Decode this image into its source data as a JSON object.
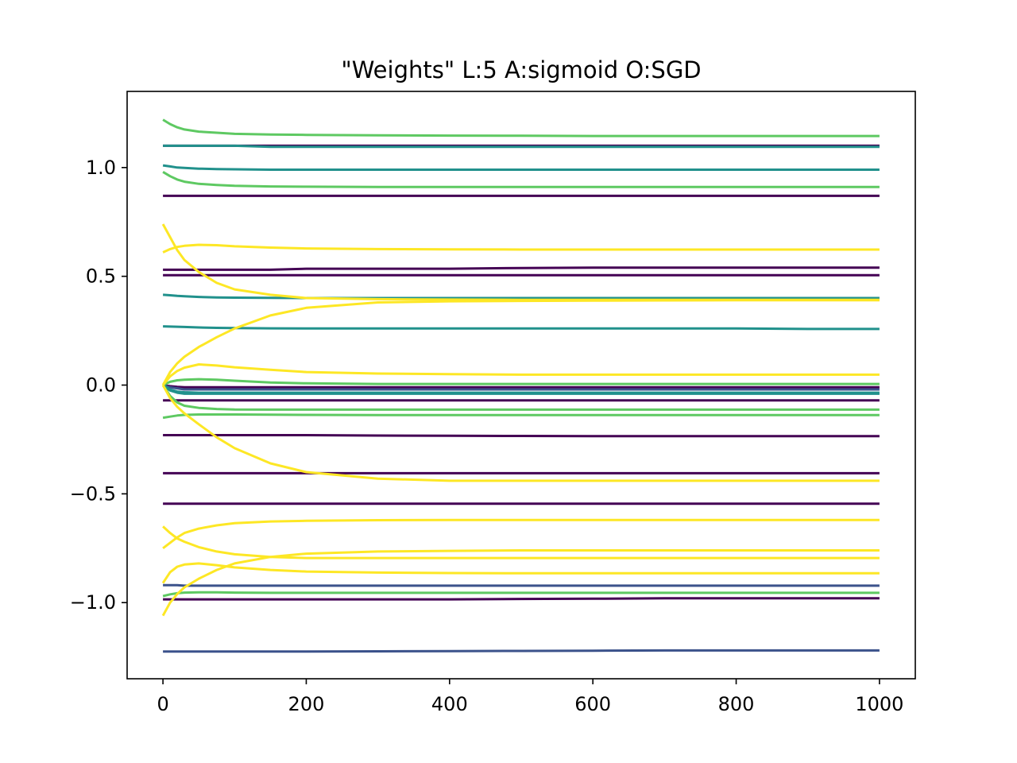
{
  "chart_data": {
    "type": "line",
    "title": "\"Weights\" L:5 A:sigmoid O:SGD",
    "xlabel": "",
    "ylabel": "",
    "xlim": [
      -50,
      1050
    ],
    "ylim": [
      -1.35,
      1.35
    ],
    "grid": false,
    "legend": "none",
    "xticks": [
      {
        "value": 0,
        "label": "0"
      },
      {
        "value": 200,
        "label": "200"
      },
      {
        "value": 400,
        "label": "400"
      },
      {
        "value": 600,
        "label": "600"
      },
      {
        "value": 800,
        "label": "800"
      },
      {
        "value": 1000,
        "label": "1000"
      }
    ],
    "yticks": [
      {
        "value": 1.0,
        "label": "1.0"
      },
      {
        "value": 0.5,
        "label": "0.5"
      },
      {
        "value": 0.0,
        "label": "0.0"
      },
      {
        "value": -0.5,
        "label": "−0.5"
      },
      {
        "value": -1.0,
        "label": "−1.0"
      }
    ],
    "x": [
      0,
      10,
      20,
      30,
      50,
      75,
      100,
      150,
      200,
      300,
      400,
      500,
      600,
      700,
      800,
      900,
      1000
    ],
    "series": [
      {
        "color": "#440154",
        "values": [
          1.1,
          1.1,
          1.1,
          1.1,
          1.1,
          1.1,
          1.1,
          1.1,
          1.1,
          1.1,
          1.1,
          1.1,
          1.1,
          1.1,
          1.1,
          1.1,
          1.1
        ]
      },
      {
        "color": "#440154",
        "values": [
          0.87,
          0.87,
          0.87,
          0.87,
          0.87,
          0.87,
          0.87,
          0.87,
          0.87,
          0.87,
          0.87,
          0.87,
          0.87,
          0.87,
          0.87,
          0.87,
          0.87
        ]
      },
      {
        "color": "#440154",
        "values": [
          0.53,
          0.53,
          0.53,
          0.53,
          0.53,
          0.53,
          0.53,
          0.53,
          0.535,
          0.535,
          0.535,
          0.538,
          0.54,
          0.54,
          0.54,
          0.54,
          0.54
        ]
      },
      {
        "color": "#440154",
        "values": [
          0.505,
          0.505,
          0.505,
          0.505,
          0.505,
          0.505,
          0.505,
          0.505,
          0.505,
          0.505,
          0.505,
          0.505,
          0.505,
          0.505,
          0.505,
          0.505,
          0.505
        ]
      },
      {
        "color": "#440154",
        "values": [
          0.0,
          -0.005,
          -0.008,
          -0.01,
          -0.01,
          -0.01,
          -0.01,
          -0.01,
          -0.01,
          -0.01,
          -0.01,
          -0.01,
          -0.01,
          -0.01,
          -0.01,
          -0.01,
          -0.01
        ]
      },
      {
        "color": "#440154",
        "values": [
          -0.07,
          -0.07,
          -0.07,
          -0.07,
          -0.07,
          -0.07,
          -0.07,
          -0.07,
          -0.07,
          -0.07,
          -0.07,
          -0.07,
          -0.07,
          -0.07,
          -0.07,
          -0.07,
          -0.07
        ]
      },
      {
        "color": "#440154",
        "values": [
          -0.23,
          -0.23,
          -0.23,
          -0.23,
          -0.23,
          -0.23,
          -0.23,
          -0.23,
          -0.23,
          -0.232,
          -0.233,
          -0.234,
          -0.235,
          -0.235,
          -0.235,
          -0.235,
          -0.235
        ]
      },
      {
        "color": "#440154",
        "values": [
          -0.405,
          -0.405,
          -0.405,
          -0.405,
          -0.405,
          -0.405,
          -0.405,
          -0.405,
          -0.405,
          -0.405,
          -0.405,
          -0.405,
          -0.405,
          -0.405,
          -0.405,
          -0.405,
          -0.405
        ]
      },
      {
        "color": "#440154",
        "values": [
          -0.545,
          -0.545,
          -0.545,
          -0.545,
          -0.545,
          -0.545,
          -0.545,
          -0.545,
          -0.545,
          -0.545,
          -0.545,
          -0.545,
          -0.545,
          -0.545,
          -0.545,
          -0.545,
          -0.545
        ]
      },
      {
        "color": "#440154",
        "values": [
          -0.985,
          -0.985,
          -0.985,
          -0.985,
          -0.985,
          -0.985,
          -0.985,
          -0.985,
          -0.985,
          -0.985,
          -0.985,
          -0.983,
          -0.982,
          -0.98,
          -0.98,
          -0.98,
          -0.98
        ]
      },
      {
        "color": "#3b528b",
        "values": [
          -0.92,
          -0.92,
          -0.92,
          -0.922,
          -0.922,
          -0.922,
          -0.922,
          -0.922,
          -0.922,
          -0.922,
          -0.922,
          -0.922,
          -0.922,
          -0.922,
          -0.922,
          -0.922,
          -0.922
        ]
      },
      {
        "color": "#3b528b",
        "values": [
          -1.225,
          -1.225,
          -1.225,
          -1.225,
          -1.225,
          -1.225,
          -1.225,
          -1.225,
          -1.225,
          -1.224,
          -1.223,
          -1.222,
          -1.221,
          -1.22,
          -1.22,
          -1.22,
          -1.22
        ]
      },
      {
        "color": "#3b528b",
        "values": [
          0.0,
          -0.01,
          -0.015,
          -0.02,
          -0.02,
          -0.02,
          -0.02,
          -0.02,
          -0.02,
          -0.02,
          -0.02,
          -0.02,
          -0.02,
          -0.02,
          -0.02,
          -0.02,
          -0.02
        ]
      },
      {
        "color": "#21918c",
        "values": [
          1.1,
          1.1,
          1.1,
          1.1,
          1.1,
          1.1,
          1.1,
          1.095,
          1.095,
          1.095,
          1.095,
          1.095,
          1.095,
          1.095,
          1.095,
          1.095,
          1.095
        ]
      },
      {
        "color": "#21918c",
        "values": [
          1.01,
          1.005,
          1.0,
          0.998,
          0.995,
          0.993,
          0.992,
          0.99,
          0.99,
          0.99,
          0.99,
          0.99,
          0.99,
          0.99,
          0.99,
          0.99,
          0.99
        ]
      },
      {
        "color": "#21918c",
        "values": [
          0.415,
          0.413,
          0.41,
          0.408,
          0.405,
          0.403,
          0.402,
          0.401,
          0.4,
          0.4,
          0.4,
          0.4,
          0.4,
          0.4,
          0.4,
          0.4,
          0.4
        ]
      },
      {
        "color": "#21918c",
        "values": [
          0.27,
          0.269,
          0.268,
          0.267,
          0.265,
          0.263,
          0.262,
          0.261,
          0.26,
          0.26,
          0.26,
          0.26,
          0.26,
          0.26,
          0.26,
          0.258,
          0.258
        ]
      },
      {
        "color": "#21918c",
        "values": [
          0.0,
          -0.02,
          -0.03,
          -0.033,
          -0.035,
          -0.035,
          -0.035,
          -0.035,
          -0.035,
          -0.035,
          -0.035,
          -0.035,
          -0.035,
          -0.035,
          -0.035,
          -0.035,
          -0.035
        ]
      },
      {
        "color": "#21918c",
        "values": [
          0.0,
          -0.025,
          -0.035,
          -0.04,
          -0.04,
          -0.04,
          -0.04,
          -0.04,
          -0.04,
          -0.04,
          -0.04,
          -0.04,
          -0.04,
          -0.04,
          -0.04,
          -0.04,
          -0.04
        ]
      },
      {
        "color": "#5ec962",
        "values": [
          1.22,
          1.2,
          1.185,
          1.175,
          1.165,
          1.16,
          1.155,
          1.152,
          1.15,
          1.148,
          1.147,
          1.146,
          1.145,
          1.145,
          1.145,
          1.145,
          1.145
        ]
      },
      {
        "color": "#5ec962",
        "values": [
          0.98,
          0.96,
          0.945,
          0.935,
          0.925,
          0.92,
          0.916,
          0.913,
          0.912,
          0.911,
          0.911,
          0.911,
          0.911,
          0.911,
          0.911,
          0.911,
          0.911
        ]
      },
      {
        "color": "#5ec962",
        "values": [
          0.0,
          0.015,
          0.022,
          0.025,
          0.027,
          0.025,
          0.02,
          0.012,
          0.008,
          0.005,
          0.005,
          0.005,
          0.005,
          0.005,
          0.005,
          0.005,
          0.005
        ]
      },
      {
        "color": "#5ec962",
        "values": [
          0.0,
          -0.05,
          -0.08,
          -0.095,
          -0.105,
          -0.11,
          -0.112,
          -0.113,
          -0.113,
          -0.113,
          -0.113,
          -0.113,
          -0.113,
          -0.113,
          -0.113,
          -0.113,
          -0.113
        ]
      },
      {
        "color": "#5ec962",
        "values": [
          -0.15,
          -0.145,
          -0.14,
          -0.137,
          -0.135,
          -0.135,
          -0.135,
          -0.136,
          -0.137,
          -0.138,
          -0.138,
          -0.138,
          -0.138,
          -0.138,
          -0.138,
          -0.138,
          -0.138
        ]
      },
      {
        "color": "#5ec962",
        "values": [
          -0.97,
          -0.962,
          -0.957,
          -0.954,
          -0.953,
          -0.953,
          -0.954,
          -0.955,
          -0.955,
          -0.955,
          -0.955,
          -0.955,
          -0.955,
          -0.955,
          -0.955,
          -0.955,
          -0.955
        ]
      },
      {
        "color": "#fde725",
        "values": [
          0.61,
          0.625,
          0.635,
          0.64,
          0.645,
          0.643,
          0.638,
          0.632,
          0.628,
          0.625,
          0.624,
          0.623,
          0.623,
          0.623,
          0.623,
          0.623,
          0.623
        ]
      },
      {
        "color": "#fde725",
        "values": [
          0.74,
          0.68,
          0.62,
          0.575,
          0.52,
          0.47,
          0.44,
          0.415,
          0.4,
          0.395,
          0.393,
          0.392,
          0.392,
          0.392,
          0.392,
          0.392,
          0.392
        ]
      },
      {
        "color": "#fde725",
        "values": [
          0.0,
          0.06,
          0.1,
          0.13,
          0.175,
          0.22,
          0.26,
          0.32,
          0.355,
          0.38,
          0.385,
          0.387,
          0.388,
          0.389,
          0.39,
          0.39,
          0.39
        ]
      },
      {
        "color": "#fde725",
        "values": [
          0.0,
          0.04,
          0.065,
          0.08,
          0.095,
          0.09,
          0.082,
          0.07,
          0.06,
          0.053,
          0.05,
          0.048,
          0.048,
          0.048,
          0.048,
          0.048,
          0.048
        ]
      },
      {
        "color": "#fde725",
        "values": [
          0.0,
          -0.06,
          -0.1,
          -0.13,
          -0.18,
          -0.24,
          -0.29,
          -0.36,
          -0.4,
          -0.43,
          -0.44,
          -0.44,
          -0.44,
          -0.44,
          -0.44,
          -0.44,
          -0.44
        ]
      },
      {
        "color": "#fde725",
        "values": [
          -0.65,
          -0.68,
          -0.705,
          -0.72,
          -0.745,
          -0.765,
          -0.778,
          -0.79,
          -0.795,
          -0.795,
          -0.795,
          -0.795,
          -0.795,
          -0.795,
          -0.795,
          -0.795,
          -0.795
        ]
      },
      {
        "color": "#fde725",
        "values": [
          -0.75,
          -0.725,
          -0.7,
          -0.68,
          -0.66,
          -0.645,
          -0.635,
          -0.627,
          -0.624,
          -0.621,
          -0.62,
          -0.62,
          -0.62,
          -0.62,
          -0.62,
          -0.62,
          -0.62
        ]
      },
      {
        "color": "#fde725",
        "values": [
          -0.91,
          -0.86,
          -0.835,
          -0.825,
          -0.82,
          -0.828,
          -0.838,
          -0.85,
          -0.857,
          -0.862,
          -0.864,
          -0.865,
          -0.865,
          -0.865,
          -0.865,
          -0.865,
          -0.865
        ]
      },
      {
        "color": "#fde725",
        "values": [
          -1.06,
          -1.0,
          -0.96,
          -0.93,
          -0.89,
          -0.85,
          -0.82,
          -0.79,
          -0.775,
          -0.765,
          -0.762,
          -0.76,
          -0.76,
          -0.76,
          -0.76,
          -0.76,
          -0.76
        ]
      }
    ]
  }
}
